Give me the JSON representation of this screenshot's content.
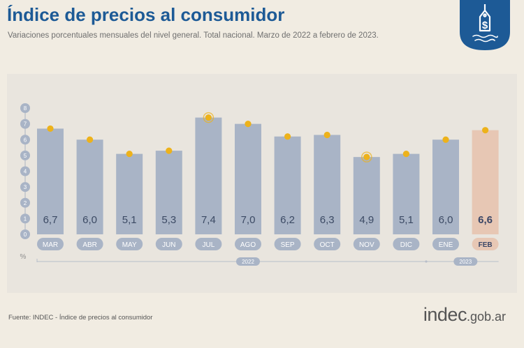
{
  "header": {
    "title": "Índice de precios al consumidor",
    "subtitle": "Variaciones porcentuales mensuales del nivel general. Total nacional. Marzo de 2022 a febrero de 2023."
  },
  "badge": {
    "icon": "price-tag-dollar-icon",
    "color": "#1d5a96"
  },
  "chart_data": {
    "type": "bar",
    "categories": [
      "MAR",
      "ABR",
      "MAY",
      "JUN",
      "JUL",
      "AGO",
      "SEP",
      "OCT",
      "NOV",
      "DIC",
      "ENE",
      "FEB"
    ],
    "values": [
      6.7,
      6.0,
      5.1,
      5.3,
      7.4,
      7.0,
      6.2,
      6.3,
      4.9,
      5.1,
      6.0,
      6.6
    ],
    "value_labels": [
      "6,7",
      "6,0",
      "5,1",
      "5,3",
      "7,4",
      "7,0",
      "6,2",
      "6,3",
      "4,9",
      "5,1",
      "6,0",
      "6,6"
    ],
    "ylim": [
      0,
      8
    ],
    "y_ticks": [
      "0",
      "1",
      "2",
      "3",
      "4",
      "5",
      "6",
      "7",
      "8"
    ],
    "ylabel": "%",
    "highlight_index": 11,
    "ring_markers": [
      4,
      8
    ],
    "year_groups": [
      {
        "label": "2022",
        "from": 0,
        "to": 10
      },
      {
        "label": "2023",
        "from": 10,
        "to": 11
      }
    ],
    "colors": {
      "bar": "#a9b4c6",
      "bar_highlight": "#e7c7b4",
      "marker": "#edb21b",
      "value_text": "#3c4a64",
      "value_text_highlight": "#3a4666",
      "month_pill": "#a9b4c6",
      "month_text": "#ffffff",
      "month_text_highlight": "#3a4666"
    }
  },
  "footer": {
    "source": "Fuente: INDEC - Índice de precios al consumidor",
    "brand_main": "indec",
    "brand_domain": ".gob.ar"
  }
}
